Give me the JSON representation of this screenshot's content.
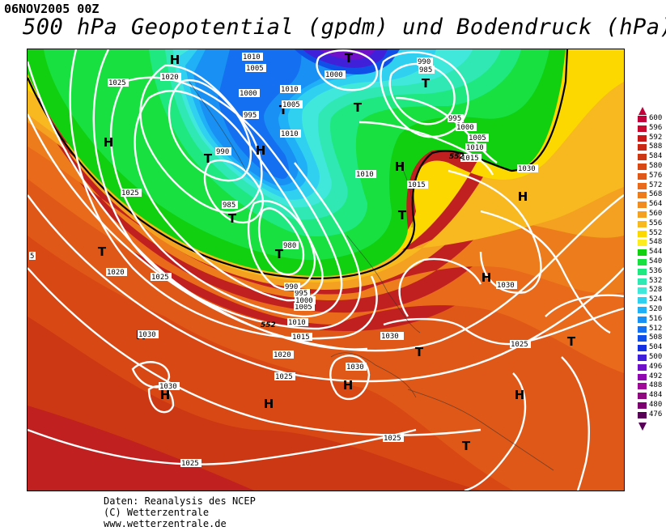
{
  "header": {
    "date": "06NOV2005 00Z",
    "title": "500 hPa Geopotential (gpdm) und Bodendruck (hPa)"
  },
  "credits": [
    "Daten: Reanalysis des NCEP",
    "(C) Wetterzentrale",
    "www.wetterzentrale.de"
  ],
  "legend": {
    "values": [
      "600",
      "596",
      "592",
      "588",
      "584",
      "580",
      "576",
      "572",
      "568",
      "564",
      "560",
      "556",
      "552",
      "548",
      "544",
      "540",
      "536",
      "532",
      "528",
      "524",
      "520",
      "516",
      "512",
      "508",
      "504",
      "500",
      "496",
      "492",
      "488",
      "484",
      "480",
      "476"
    ],
    "colors": [
      "#c2003a",
      "#c80a2e",
      "#c81818",
      "#c82814",
      "#cc3814",
      "#d84814",
      "#e05818",
      "#e86a1a",
      "#ec7c1c",
      "#f08c20",
      "#f4a020",
      "#f8b820",
      "#fcd800",
      "#fcec20",
      "#10d010",
      "#18e040",
      "#20e880",
      "#30e8b4",
      "#40e8dc",
      "#30d0f0",
      "#20b0f8",
      "#1890f4",
      "#1470f0",
      "#1050e8",
      "#1430e0",
      "#4020d8",
      "#7010c8",
      "#9008b0",
      "#a00898",
      "#900880",
      "#7c0070",
      "#580058"
    ]
  },
  "map": {
    "pressure_centers": [
      {
        "label": "H"
      },
      {
        "label": "H"
      },
      {
        "label": "H"
      },
      {
        "label": "H"
      },
      {
        "label": "H"
      },
      {
        "label": "H"
      },
      {
        "label": "H"
      },
      {
        "label": "H"
      },
      {
        "label": "H"
      },
      {
        "label": "H"
      },
      {
        "label": "H"
      },
      {
        "label": "T"
      },
      {
        "label": "T"
      },
      {
        "label": "T"
      },
      {
        "label": "T"
      },
      {
        "label": "T"
      },
      {
        "label": "T"
      },
      {
        "label": "T"
      },
      {
        "label": "T"
      },
      {
        "label": "T"
      },
      {
        "label": "T"
      },
      {
        "label": "T"
      },
      {
        "label": "T"
      }
    ],
    "isobar_labels": [
      "1010",
      "1005",
      "1020",
      "1025",
      "1000",
      "995",
      "990",
      "985",
      "980",
      "1010",
      "1005",
      "1000",
      "1010",
      "985",
      "990",
      "995",
      "1000",
      "1005",
      "1010",
      "1015",
      "1010",
      "1015",
      "1030",
      "1025",
      "1020",
      "1015",
      "1010",
      "1005",
      "1000",
      "995",
      "990",
      "1030",
      "1030",
      "1030",
      "1030",
      "1025",
      "1025",
      "1025",
      "1030",
      "1020",
      "1025",
      "5",
      "1025",
      "1025",
      "1030",
      "1030"
    ],
    "contour_labels": [
      "552",
      "552"
    ]
  }
}
